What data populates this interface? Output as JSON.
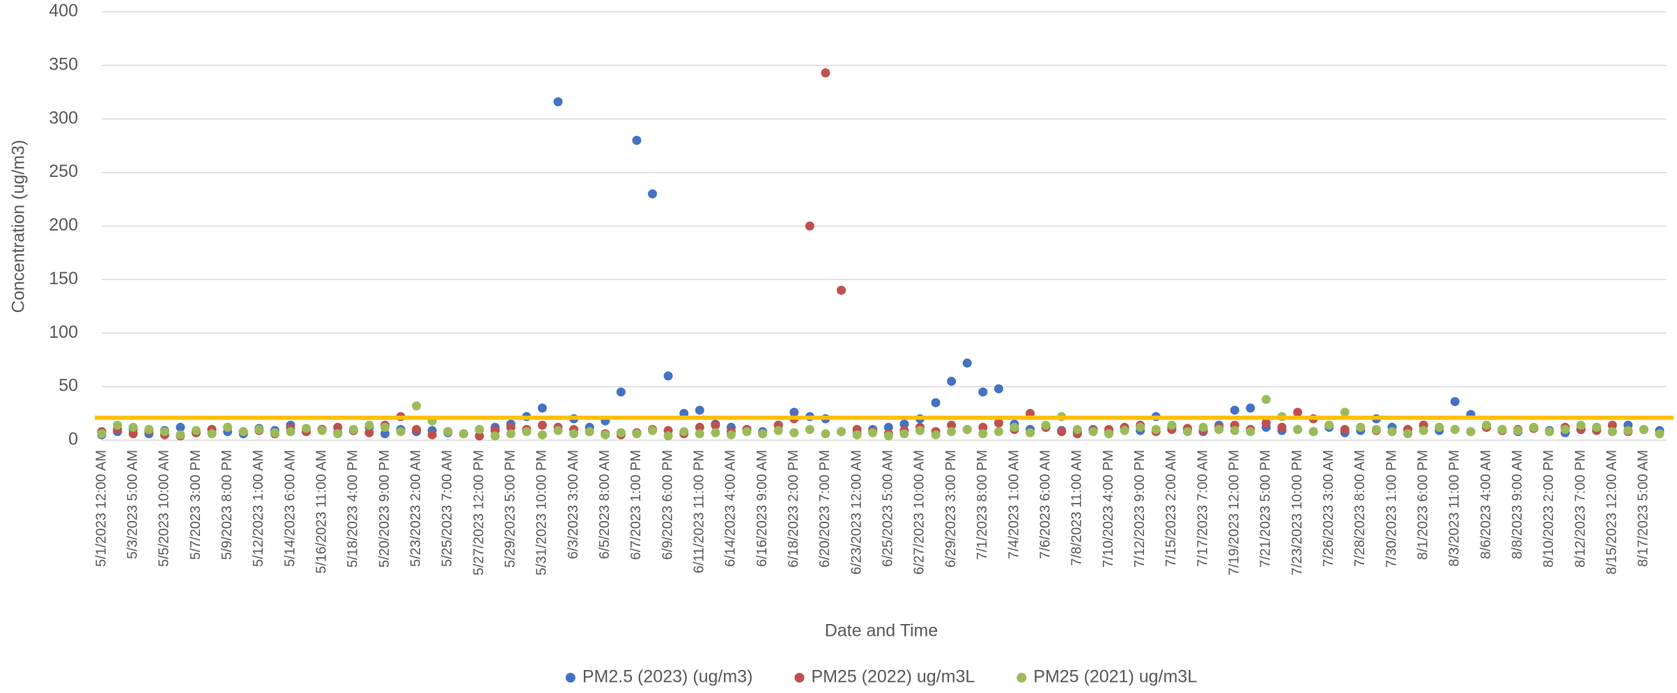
{
  "chart_data": {
    "type": "scatter",
    "x_label": "Date and Time",
    "y_label": "Concentration (ug/m3)",
    "categories": [
      "5/1/2023 12:00 AM",
      null,
      "5/3/2023 5:00 AM",
      null,
      "5/5/2023 10:00 AM",
      null,
      "5/7/2023 3:00 PM",
      null,
      "5/9/2023 8:00 PM",
      null,
      "5/12/2023 1:00 AM",
      null,
      "5/14/2023 6:00 AM",
      null,
      "5/16/2023 11:00 AM",
      null,
      "5/18/2023 4:00 PM",
      null,
      "5/20/2023 9:00 PM",
      null,
      "5/23/2023 2:00 AM",
      null,
      "5/25/2023 7:00 AM",
      null,
      "5/27/2023 12:00 PM",
      null,
      "5/29/2023 5:00 PM",
      null,
      "5/31/2023 10:00 PM",
      null,
      "6/3/2023 3:00 AM",
      null,
      "6/5/2023 8:00 AM",
      null,
      "6/7/2023 1:00 PM",
      null,
      "6/9/2023 6:00 PM",
      null,
      "6/11/2023 11:00 PM",
      null,
      "6/14/2023 4:00 AM",
      null,
      "6/16/2023 9:00 AM",
      null,
      "6/18/2023 2:00 PM",
      null,
      "6/20/2023 7:00 PM",
      null,
      "6/23/2023 12:00 AM",
      null,
      "6/25/2023 5:00 AM",
      null,
      "6/27/2023 10:00 AM",
      null,
      "6/29/2023 3:00 PM",
      null,
      "7/1/2023 8:00 PM",
      null,
      "7/4/2023 1:00 AM",
      null,
      "7/6/2023 6:00 AM",
      null,
      "7/8/2023 11:00 AM",
      null,
      "7/10/2023 4:00 PM",
      null,
      "7/12/2023 9:00 PM",
      null,
      "7/15/2023 2:00 AM",
      null,
      "7/17/2023 7:00 AM",
      null,
      "7/19/2023 12:00 PM",
      null,
      "7/21/2023 5:00 PM",
      null,
      "7/23/2023 10:00 PM",
      null,
      "7/26/2023 3:00 AM",
      null,
      "7/28/2023 8:00 AM",
      null,
      "7/30/2023 1:00 PM",
      null,
      "8/1/2023 6:00 PM",
      null,
      "8/3/2023 11:00 PM",
      null,
      "8/6/2023 4:00 AM",
      null,
      "8/8/2023 9:00 AM",
      null,
      "8/10/2023 2:00 PM",
      null,
      "8/12/2023 7:00 PM",
      null,
      "8/15/2023 12:00 AM",
      null,
      "8/17/2023 5:00 AM",
      null
    ],
    "series": [
      {
        "name": "PM2.5 (2023) (ug/m3)",
        "color": "#4472c4",
        "values": [
          5,
          8,
          10,
          6,
          9,
          12,
          7,
          10,
          8,
          6,
          11,
          9,
          14,
          8,
          10,
          7,
          9,
          12,
          6,
          10,
          8,
          9,
          7,
          6,
          10,
          12,
          15,
          22,
          30,
          316,
          20,
          12,
          18,
          45,
          280,
          230,
          60,
          25,
          28,
          15,
          12,
          10,
          8,
          14,
          26,
          22,
          20,
          8,
          6,
          10,
          12,
          15,
          20,
          35,
          55,
          72,
          45,
          48,
          15,
          10,
          12,
          9,
          8,
          10,
          7,
          11,
          9,
          22,
          12,
          10,
          8,
          14,
          28,
          30,
          12,
          9,
          10,
          8,
          12,
          7,
          9,
          20,
          12,
          10,
          14,
          9,
          36,
          24,
          12,
          10,
          8,
          11,
          9,
          7,
          10,
          12,
          8,
          14,
          10,
          9
        ]
      },
      {
        "name": "PM25 (2022) ug/m3L",
        "color": "#c0504d",
        "values": [
          8,
          10,
          6,
          9,
          5,
          4,
          7,
          10,
          12,
          8,
          9,
          6,
          11,
          8,
          10,
          12,
          9,
          7,
          14,
          22,
          10,
          5,
          8,
          6,
          4,
          9,
          12,
          10,
          14,
          12,
          10,
          8,
          6,
          5,
          7,
          10,
          9,
          6,
          12,
          14,
          8,
          10,
          6,
          14,
          20,
          200,
          343,
          140,
          10,
          8,
          6,
          9,
          12,
          8,
          14,
          10,
          12,
          16,
          10,
          25,
          12,
          8,
          6,
          9,
          10,
          12,
          14,
          8,
          10,
          11,
          9,
          12,
          14,
          10,
          16,
          12,
          26,
          20,
          14,
          10,
          12,
          9,
          8,
          10,
          14,
          12,
          10,
          8,
          12,
          9,
          10,
          11,
          8,
          12,
          10,
          9,
          14,
          8,
          10,
          6
        ]
      },
      {
        "name": "PM25 (2021) ug/m3L",
        "color": "#9bbb59",
        "values": [
          6,
          14,
          12,
          10,
          8,
          5,
          9,
          6,
          12,
          8,
          10,
          7,
          8,
          11,
          9,
          6,
          10,
          14,
          12,
          8,
          32,
          18,
          8,
          6,
          10,
          4,
          6,
          8,
          5,
          9,
          6,
          8,
          5,
          7,
          6,
          9,
          4,
          8,
          6,
          7,
          5,
          8,
          6,
          9,
          7,
          10,
          6,
          8,
          5,
          7,
          4,
          6,
          9,
          5,
          8,
          10,
          6,
          8,
          12,
          7,
          14,
          22,
          10,
          8,
          6,
          9,
          12,
          10,
          14,
          8,
          12,
          10,
          9,
          8,
          38,
          22,
          10,
          8,
          14,
          26,
          12,
          10,
          8,
          6,
          9,
          12,
          10,
          8,
          14,
          10,
          9,
          12,
          8,
          10,
          14,
          12,
          8,
          9,
          10,
          6
        ]
      }
    ],
    "reference_line": {
      "value": 21,
      "color": "#ffc000"
    },
    "ylim": [
      0,
      400
    ],
    "yticks": [
      0,
      50,
      100,
      150,
      200,
      250,
      300,
      350,
      400
    ],
    "grid": true,
    "legend": "bottom"
  }
}
